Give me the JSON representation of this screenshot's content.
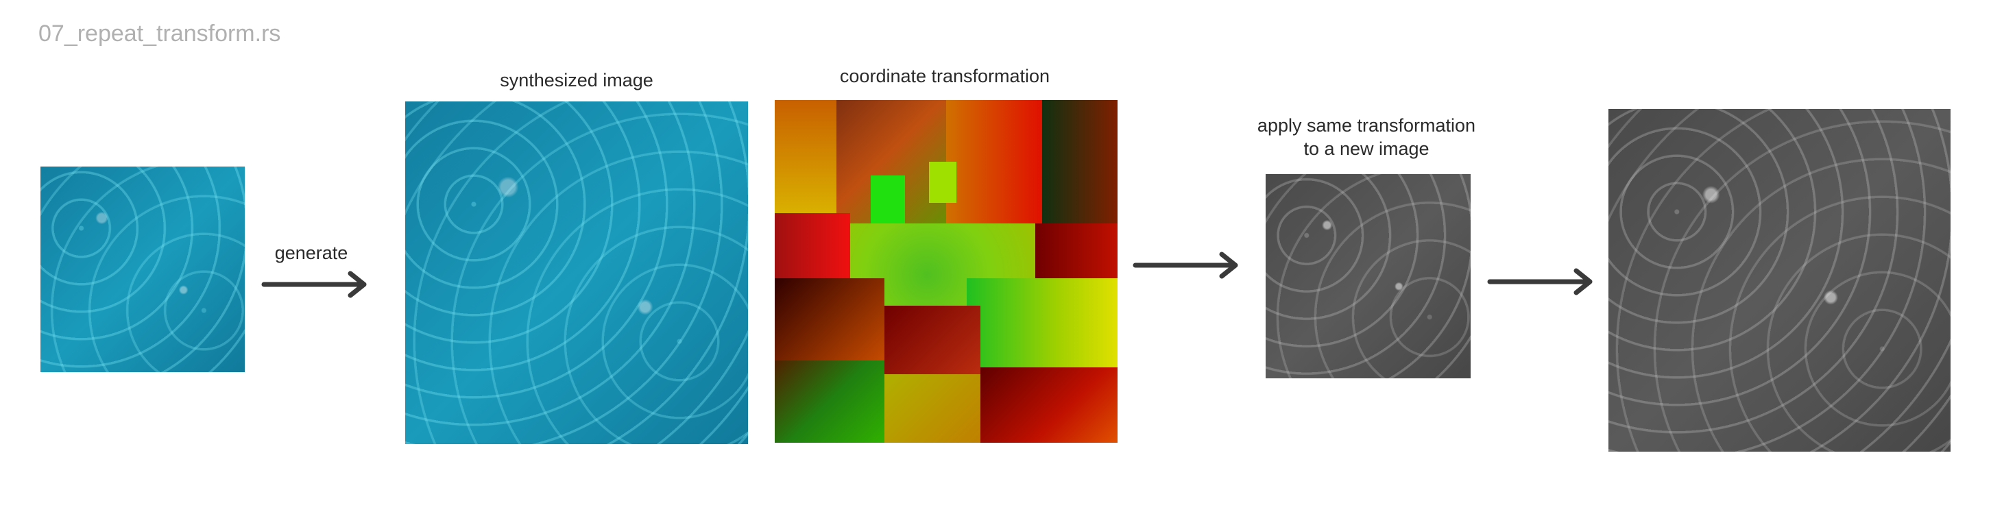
{
  "title": "07_repeat_transform.rs",
  "steps": {
    "generate_label": "generate",
    "synthesized_label": "synthesized image",
    "coordinate_label": "coordinate transformation",
    "apply_label_line1": "apply same transformation",
    "apply_label_line2": "to a new image"
  },
  "icons": [
    "arrow-right-icon",
    "arrow-right-icon",
    "arrow-right-icon"
  ],
  "colors": {
    "water": "#1a9bbb",
    "coord_red": "#e01010",
    "coord_green": "#20e010",
    "coord_yellow": "#e8e800",
    "gray": "#555555",
    "arrow": "#3a3a3a",
    "title": "#b0b0b0"
  }
}
